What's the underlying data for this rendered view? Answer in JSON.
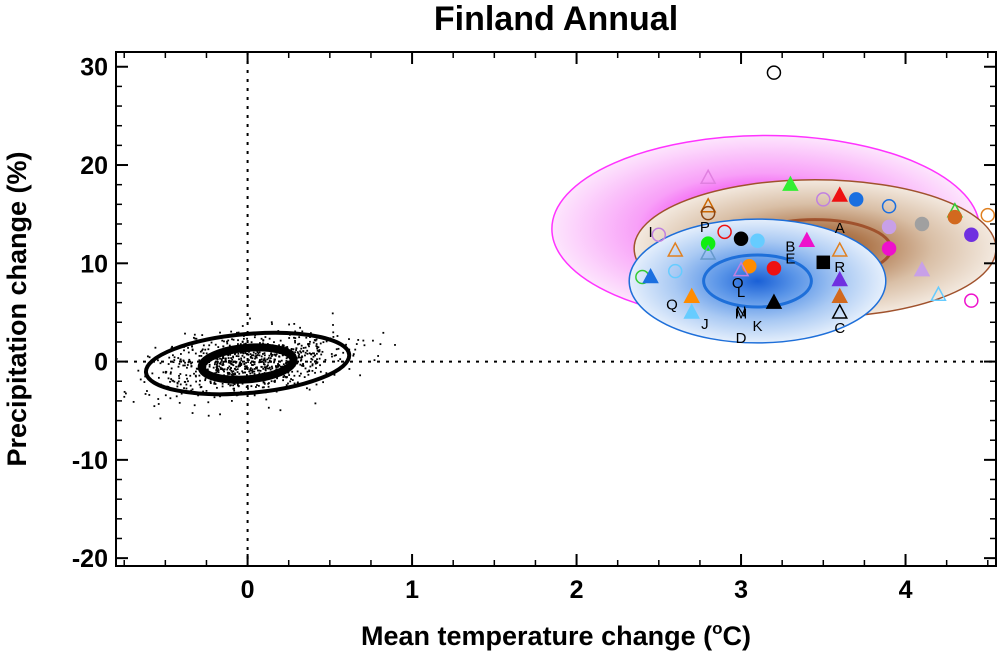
{
  "chart_data": {
    "type": "scatter",
    "title": "Finland Annual",
    "xlabel": "Mean temperature change (",
    "xlabel_sup": "o",
    "xlabel_tail": "C)",
    "ylabel": "Precipitation change (%)",
    "xlim": [
      -0.8,
      4.55
    ],
    "ylim": [
      -20.8,
      31.5
    ],
    "xticks": [
      0,
      1,
      2,
      3,
      4
    ],
    "yticks": [
      -20,
      -10,
      0,
      10,
      20,
      30
    ],
    "xtick_labels": [
      "0",
      "1",
      "2",
      "3",
      "4"
    ],
    "ytick_labels": [
      "-20",
      "-10",
      "0",
      "10",
      "20",
      "30"
    ],
    "reference_lines": {
      "x": 0,
      "y": 0,
      "style": "dotted"
    },
    "natural_variability": {
      "center": [
        0.0,
        -0.2
      ],
      "n_points": 900,
      "inner_ellipse": {
        "rx": 0.28,
        "ry": 1.6,
        "rotation_deg": -5
      },
      "outer_ellipse": {
        "rx": 0.62,
        "ry": 3.0,
        "rotation_deg": -5
      }
    },
    "distributions": [
      {
        "name": "magenta",
        "color": "#ff33ff",
        "center": [
          3.15,
          13.5
        ],
        "rx": 1.3,
        "ry": 9.5
      },
      {
        "name": "brown",
        "color": "#a0522d",
        "center": [
          3.45,
          11.5
        ],
        "rx": 1.1,
        "ry": 7.0
      },
      {
        "name": "blue",
        "color": "#1e6fd9",
        "center": [
          3.1,
          8.2
        ],
        "rx": 0.78,
        "ry": 6.3
      }
    ],
    "models": [
      {
        "x": 3.2,
        "y": 29.4,
        "marker": "circle",
        "fill": "none",
        "color": "#000000"
      },
      {
        "x": 2.8,
        "y": 18.7,
        "marker": "triangle",
        "fill": "none",
        "color": "#e080e0"
      },
      {
        "x": 3.3,
        "y": 18.0,
        "marker": "triangle",
        "fill": "solid",
        "color": "#33ee33"
      },
      {
        "x": 3.6,
        "y": 16.9,
        "marker": "triangle",
        "fill": "solid",
        "color": "#ee1111"
      },
      {
        "x": 3.7,
        "y": 16.5,
        "marker": "circle",
        "fill": "solid",
        "color": "#1a6fe0"
      },
      {
        "x": 3.5,
        "y": 16.5,
        "marker": "circle",
        "fill": "none",
        "color": "#c080e0"
      },
      {
        "x": 3.9,
        "y": 15.8,
        "marker": "circle",
        "fill": "none",
        "color": "#1a6fe0"
      },
      {
        "x": 2.8,
        "y": 15.8,
        "marker": "triangle",
        "fill": "none",
        "color": "#cc6600"
      },
      {
        "x": 2.8,
        "y": 15.1,
        "marker": "circle",
        "fill": "none",
        "color": "#8b4513"
      },
      {
        "x": 4.3,
        "y": 15.3,
        "marker": "triangle",
        "fill": "none",
        "color": "#33cc33"
      },
      {
        "x": 4.3,
        "y": 14.7,
        "marker": "circle",
        "fill": "solid",
        "color": "#d2691e"
      },
      {
        "x": 4.5,
        "y": 14.9,
        "marker": "circle",
        "fill": "none",
        "color": "#e08020"
      },
      {
        "x": 4.1,
        "y": 14.0,
        "marker": "circle",
        "fill": "solid",
        "color": "#a0a0a0"
      },
      {
        "x": 3.9,
        "y": 13.7,
        "marker": "circle",
        "fill": "solid",
        "color": "#c8a0e8"
      },
      {
        "x": 2.5,
        "y": 12.9,
        "marker": "circle",
        "fill": "none",
        "color": "#c080e0"
      },
      {
        "x": 2.9,
        "y": 13.2,
        "marker": "circle",
        "fill": "none",
        "color": "#ee1111"
      },
      {
        "x": 4.4,
        "y": 12.9,
        "marker": "circle",
        "fill": "solid",
        "color": "#7030e0"
      },
      {
        "x": 3.0,
        "y": 12.5,
        "marker": "circle",
        "fill": "solid",
        "color": "#000000"
      },
      {
        "x": 3.1,
        "y": 12.3,
        "marker": "circle",
        "fill": "solid",
        "color": "#66ccff"
      },
      {
        "x": 3.4,
        "y": 12.3,
        "marker": "triangle",
        "fill": "solid",
        "color": "#ee11cc"
      },
      {
        "x": 2.8,
        "y": 12.0,
        "marker": "circle",
        "fill": "solid",
        "color": "#11ee11"
      },
      {
        "x": 3.6,
        "y": 11.3,
        "marker": "triangle",
        "fill": "none",
        "color": "#e08020"
      },
      {
        "x": 2.6,
        "y": 11.3,
        "marker": "triangle",
        "fill": "none",
        "color": "#e08020"
      },
      {
        "x": 3.9,
        "y": 11.5,
        "marker": "circle",
        "fill": "solid",
        "color": "#ee11cc"
      },
      {
        "x": 2.8,
        "y": 11.0,
        "marker": "triangle",
        "fill": "none",
        "color": "#6699cc"
      },
      {
        "x": 3.5,
        "y": 10.1,
        "marker": "square",
        "fill": "solid",
        "color": "#000000"
      },
      {
        "x": 3.2,
        "y": 9.5,
        "marker": "circle",
        "fill": "solid",
        "color": "#ee1111"
      },
      {
        "x": 3.05,
        "y": 9.7,
        "marker": "circle",
        "fill": "solid",
        "color": "#ff8c00"
      },
      {
        "x": 2.6,
        "y": 9.2,
        "marker": "circle",
        "fill": "none",
        "color": "#66ccff"
      },
      {
        "x": 3.0,
        "y": 9.3,
        "marker": "triangle",
        "fill": "none",
        "color": "#c080e0"
      },
      {
        "x": 4.1,
        "y": 9.3,
        "marker": "triangle",
        "fill": "solid",
        "color": "#c8a0e8"
      },
      {
        "x": 2.4,
        "y": 8.6,
        "marker": "circle",
        "fill": "none",
        "color": "#33cc33"
      },
      {
        "x": 2.45,
        "y": 8.6,
        "marker": "triangle",
        "fill": "solid",
        "color": "#1a6fe0"
      },
      {
        "x": 3.6,
        "y": 8.3,
        "marker": "triangle",
        "fill": "solid",
        "color": "#7030e0"
      },
      {
        "x": 4.2,
        "y": 6.8,
        "marker": "triangle",
        "fill": "none",
        "color": "#66ccff"
      },
      {
        "x": 3.6,
        "y": 6.6,
        "marker": "triangle",
        "fill": "solid",
        "color": "#d2691e"
      },
      {
        "x": 2.7,
        "y": 6.6,
        "marker": "triangle",
        "fill": "solid",
        "color": "#ff8c00"
      },
      {
        "x": 4.4,
        "y": 6.2,
        "marker": "circle",
        "fill": "none",
        "color": "#ee11cc"
      },
      {
        "x": 3.2,
        "y": 6.0,
        "marker": "triangle",
        "fill": "solid",
        "color": "#000000"
      },
      {
        "x": 2.7,
        "y": 5.0,
        "marker": "triangle",
        "fill": "solid",
        "color": "#66ccff"
      },
      {
        "x": 3.6,
        "y": 5.0,
        "marker": "triangle",
        "fill": "none",
        "color": "#000000"
      }
    ],
    "model_letters": [
      {
        "text": "I",
        "x": 2.45,
        "y": 13.2
      },
      {
        "text": "P",
        "x": 2.78,
        "y": 13.7
      },
      {
        "text": "A",
        "x": 3.6,
        "y": 13.6
      },
      {
        "text": "B",
        "x": 3.3,
        "y": 11.7
      },
      {
        "text": "E",
        "x": 3.3,
        "y": 10.5
      },
      {
        "text": "R",
        "x": 3.6,
        "y": 9.6
      },
      {
        "text": "O",
        "x": 2.98,
        "y": 8.0
      },
      {
        "text": "L",
        "x": 3.0,
        "y": 7.1
      },
      {
        "text": "Q",
        "x": 2.58,
        "y": 5.8
      },
      {
        "text": "N",
        "x": 3.0,
        "y": 5.1
      },
      {
        "text": "M",
        "x": 3.0,
        "y": 4.9
      },
      {
        "text": "J",
        "x": 2.78,
        "y": 3.8
      },
      {
        "text": "K",
        "x": 3.1,
        "y": 3.6
      },
      {
        "text": "C",
        "x": 3.6,
        "y": 3.4
      },
      {
        "text": "D",
        "x": 3.0,
        "y": 2.4
      }
    ]
  }
}
